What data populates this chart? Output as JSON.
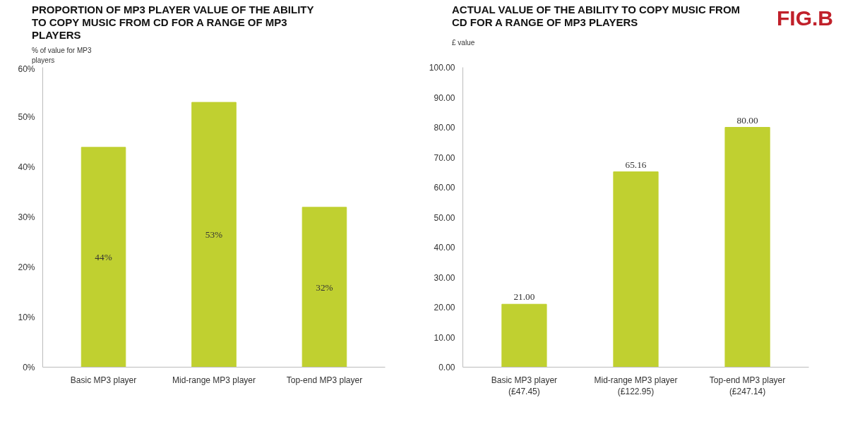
{
  "chart_data": [
    {
      "type": "bar",
      "title": "PROPORTION OF MP3 PLAYER VALUE OF THE ABILITY TO COPY MUSIC FROM CD FOR A RANGE OF MP3 PLAYERS",
      "ylabel": "% of value for MP3 players",
      "categories": [
        "Basic MP3 player",
        "Mid-range MP3 player",
        "Top-end MP3 player"
      ],
      "values": [
        44,
        53,
        32
      ],
      "value_labels": [
        "44%",
        "53%",
        "32%"
      ],
      "color": "#c0d030",
      "ylim": [
        0,
        60
      ],
      "yticks": [
        {
          "value": 0,
          "label": "0%"
        },
        {
          "value": 10,
          "label": "10%"
        },
        {
          "value": 20,
          "label": "20%"
        },
        {
          "value": 30,
          "label": "30%"
        },
        {
          "value": 40,
          "label": "40%"
        },
        {
          "value": 50,
          "label": "50%"
        },
        {
          "value": 60,
          "label": "60%"
        }
      ],
      "grid": false,
      "legend": false
    },
    {
      "type": "bar",
      "title": "ACTUAL VALUE OF THE ABILITY TO COPY MUSIC FROM CD FOR A RANGE OF MP3 PLAYERS",
      "ylabel": "£ value",
      "annotations": [
        "FIG.B"
      ],
      "categories": [
        "Basic MP3 player (£47.45)",
        "Mid-range MP3 player (£122.95)",
        "Top-end MP3 player (£247.14)"
      ],
      "values": [
        21.0,
        65.16,
        80.0
      ],
      "value_labels": [
        "21.00",
        "65.16",
        "80.00"
      ],
      "color": "#c0d030",
      "ylim": [
        0,
        100
      ],
      "yticks": [
        {
          "value": 0,
          "label": "0.00"
        },
        {
          "value": 10,
          "label": "10.00"
        },
        {
          "value": 20,
          "label": "20.00"
        },
        {
          "value": 30,
          "label": "30.00"
        },
        {
          "value": 40,
          "label": "40.00"
        },
        {
          "value": 50,
          "label": "50.00"
        },
        {
          "value": 60,
          "label": "60.00"
        },
        {
          "value": 70,
          "label": "70.00"
        },
        {
          "value": 80,
          "label": "80.00"
        },
        {
          "value": 90,
          "label": "90.00"
        },
        {
          "value": 100,
          "label": "100.00"
        }
      ],
      "grid": false,
      "legend": false
    }
  ]
}
